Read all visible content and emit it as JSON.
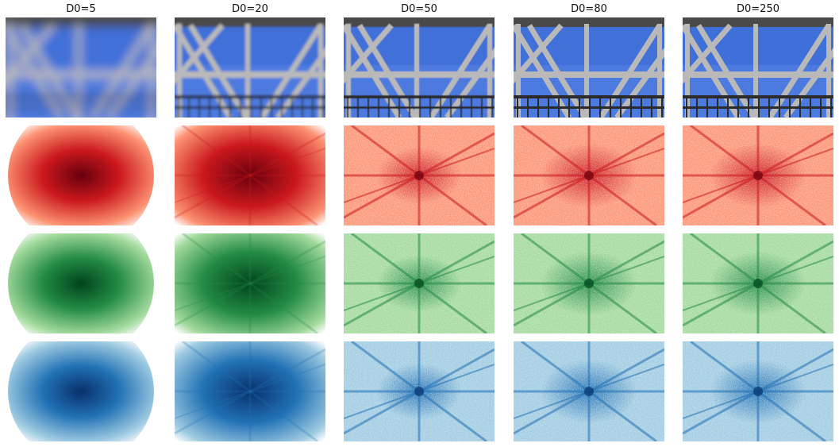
{
  "figure": {
    "columns": [
      {
        "title": "D0=5",
        "cutoff": 5
      },
      {
        "title": "D0=20",
        "cutoff": 20
      },
      {
        "title": "D0=50",
        "cutoff": 50
      },
      {
        "title": "D0=80",
        "cutoff": 80
      },
      {
        "title": "D0=250",
        "cutoff": 250
      }
    ],
    "rows": [
      {
        "content": "filtered-photo",
        "colormap": "rgb"
      },
      {
        "content": "spectrum-red",
        "colormap": "Reds",
        "dark": "#67000d",
        "mid": "#cb181d",
        "light": "#fc9272"
      },
      {
        "content": "spectrum-green",
        "colormap": "Greens",
        "dark": "#00441b",
        "mid": "#238b45",
        "light": "#a1d99b"
      },
      {
        "content": "spectrum-blue",
        "colormap": "Blues",
        "dark": "#08306b",
        "mid": "#2171b5",
        "light": "#9ecae1"
      }
    ],
    "photo_colors": {
      "sky": "#3f6fd8",
      "sky_light": "#5b86e6",
      "steel": "#b9b9b9",
      "steel_dark": "#2b2b2b",
      "frame": "#4a4a4a"
    }
  }
}
